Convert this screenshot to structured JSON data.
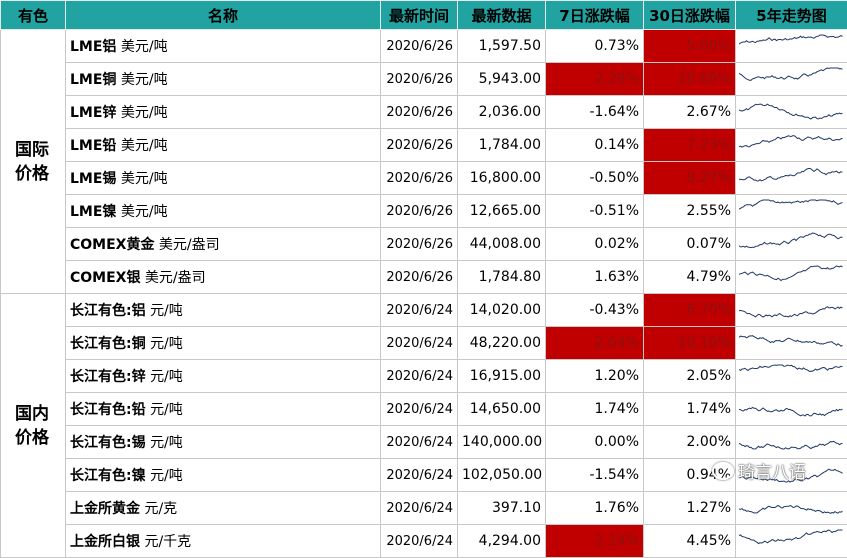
{
  "header": {
    "columns": [
      "有色",
      "名称",
      "最新时间",
      "最新数据",
      "7日涨跌幅",
      "30日涨跌幅",
      "5年走势图"
    ]
  },
  "groups": [
    {
      "label": "国际价格",
      "rows": [
        {
          "name": "LME铝",
          "unit": "美元/吨",
          "date": "2020/6/26",
          "value": "1,597.50",
          "chg7": "0.73%",
          "chg30": "5.00%",
          "hl7": false,
          "hl30": true
        },
        {
          "name": "LME铜",
          "unit": "美元/吨",
          "date": "2020/6/26",
          "value": "5,943.00",
          "chg7": "2.29%",
          "chg30": "10.69%",
          "hl7": true,
          "hl30": true
        },
        {
          "name": "LME锌",
          "unit": "美元/吨",
          "date": "2020/6/26",
          "value": "2,036.00",
          "chg7": "-1.64%",
          "chg30": "2.67%",
          "hl7": false,
          "hl30": false
        },
        {
          "name": "LME铅",
          "unit": "美元/吨",
          "date": "2020/6/26",
          "value": "1,784.00",
          "chg7": "0.14%",
          "chg30": "7.23%",
          "hl7": false,
          "hl30": true
        },
        {
          "name": "LME锡",
          "unit": "美元/吨",
          "date": "2020/6/26",
          "value": "16,800.00",
          "chg7": "-0.50%",
          "chg30": "9.27%",
          "hl7": false,
          "hl30": true
        },
        {
          "name": "LME镍",
          "unit": "美元/吨",
          "date": "2020/6/26",
          "value": "12,665.00",
          "chg7": "-0.51%",
          "chg30": "2.55%",
          "hl7": false,
          "hl30": false
        },
        {
          "name": "COMEX黄金",
          "unit": "美元/盎司",
          "date": "2020/6/26",
          "value": "44,008.00",
          "chg7": "0.02%",
          "chg30": "0.07%",
          "hl7": false,
          "hl30": false
        },
        {
          "name": "COMEX银",
          "unit": "美元/盎司",
          "date": "2020/6/26",
          "value": "1,784.80",
          "chg7": "1.63%",
          "chg30": "4.79%",
          "hl7": false,
          "hl30": false
        }
      ]
    },
    {
      "label": "国内价格",
      "rows": [
        {
          "name": "长江有色:铝",
          "unit": "元/吨",
          "date": "2020/6/24",
          "value": "14,020.00",
          "chg7": "-0.43%",
          "chg30": "6.70%",
          "hl7": false,
          "hl30": true
        },
        {
          "name": "长江有色:铜",
          "unit": "元/吨",
          "date": "2020/6/24",
          "value": "48,220.00",
          "chg7": "2.64%",
          "chg30": "10.19%",
          "hl7": true,
          "hl30": true
        },
        {
          "name": "长江有色:锌",
          "unit": "元/吨",
          "date": "2020/6/24",
          "value": "16,915.00",
          "chg7": "1.20%",
          "chg30": "2.05%",
          "hl7": false,
          "hl30": false
        },
        {
          "name": "长江有色:铅",
          "unit": "元/吨",
          "date": "2020/6/24",
          "value": "14,650.00",
          "chg7": "1.74%",
          "chg30": "1.74%",
          "hl7": false,
          "hl30": false
        },
        {
          "name": "长江有色:锡",
          "unit": "元/吨",
          "date": "2020/6/24",
          "value": "140,000.00",
          "chg7": "0.00%",
          "chg30": "2.00%",
          "hl7": false,
          "hl30": false
        },
        {
          "name": "长江有色:镍",
          "unit": "元/吨",
          "date": "2020/6/24",
          "value": "102,050.00",
          "chg7": "-1.54%",
          "chg30": "0.94%",
          "hl7": false,
          "hl30": false
        },
        {
          "name": "上金所黄金",
          "unit": "元/克",
          "date": "2020/6/24",
          "value": "397.10",
          "chg7": "1.76%",
          "chg30": "1.27%",
          "hl7": false,
          "hl30": false
        },
        {
          "name": "上金所白银",
          "unit": "元/千克",
          "date": "2020/6/24",
          "value": "4,294.00",
          "chg7": "2.14%",
          "chg30": "4.45%",
          "hl7": true,
          "hl30": false
        }
      ]
    }
  ],
  "watermark": "琦言八语"
}
